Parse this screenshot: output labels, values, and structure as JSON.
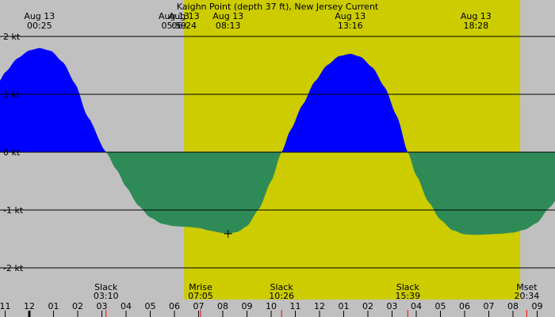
{
  "chart_data": {
    "type": "area",
    "title": "Kaighn Point (depth 37 ft), New Jersey Current",
    "ylim": [
      -2.35,
      2.45
    ],
    "xlim_hours": [
      -1.25,
      33.2
    ],
    "y_ticks": [
      {
        "value": 2,
        "label": "2 kt"
      },
      {
        "value": 1,
        "label": "1 kt"
      },
      {
        "value": 0,
        "label": "0 kt"
      },
      {
        "value": -1,
        "label": "-1 kt"
      },
      {
        "value": -2,
        "label": "-2 kt"
      }
    ],
    "x_ticks": [
      {
        "h": -1,
        "label": "11"
      },
      {
        "h": 0,
        "label": "12"
      },
      {
        "h": 1,
        "label": "01"
      },
      {
        "h": 2,
        "label": "02"
      },
      {
        "h": 3,
        "label": "03"
      },
      {
        "h": 4,
        "label": "04"
      },
      {
        "h": 5,
        "label": "05"
      },
      {
        "h": 6,
        "label": "06"
      },
      {
        "h": 7,
        "label": "07"
      },
      {
        "h": 8,
        "label": "08"
      },
      {
        "h": 9,
        "label": "09"
      },
      {
        "h": 10,
        "label": "10"
      },
      {
        "h": 11,
        "label": "11"
      },
      {
        "h": 12,
        "label": "12"
      },
      {
        "h": 13,
        "label": "01"
      },
      {
        "h": 14,
        "label": "02"
      },
      {
        "h": 15,
        "label": "03"
      },
      {
        "h": 16,
        "label": "04"
      },
      {
        "h": 17,
        "label": "05"
      },
      {
        "h": 18,
        "label": "06"
      },
      {
        "h": 19,
        "label": "07"
      },
      {
        "h": 20,
        "label": "08"
      },
      {
        "h": 21,
        "label": "09"
      }
    ],
    "daylight": {
      "start": 6.4,
      "end": 20.3
    },
    "curve": [
      [
        -1.25,
        1.22
      ],
      [
        -1.0,
        1.38
      ],
      [
        -0.5,
        1.62
      ],
      [
        0.0,
        1.76
      ],
      [
        0.42,
        1.8
      ],
      [
        0.9,
        1.75
      ],
      [
        1.4,
        1.55
      ],
      [
        1.9,
        1.18
      ],
      [
        2.4,
        0.62
      ],
      [
        3.17,
        0.0
      ],
      [
        3.6,
        -0.3
      ],
      [
        4.0,
        -0.6
      ],
      [
        4.5,
        -0.92
      ],
      [
        5.0,
        -1.13
      ],
      [
        5.5,
        -1.24
      ],
      [
        6.0,
        -1.28
      ],
      [
        6.5,
        -1.29
      ],
      [
        7.0,
        -1.31
      ],
      [
        7.5,
        -1.36
      ],
      [
        8.0,
        -1.4
      ],
      [
        8.22,
        -1.41
      ],
      [
        8.6,
        -1.38
      ],
      [
        9.0,
        -1.28
      ],
      [
        9.5,
        -0.98
      ],
      [
        10.0,
        -0.5
      ],
      [
        10.43,
        0.0
      ],
      [
        10.8,
        0.38
      ],
      [
        11.3,
        0.82
      ],
      [
        11.8,
        1.22
      ],
      [
        12.3,
        1.5
      ],
      [
        12.8,
        1.66
      ],
      [
        13.27,
        1.7
      ],
      [
        13.7,
        1.65
      ],
      [
        14.2,
        1.46
      ],
      [
        14.7,
        1.12
      ],
      [
        15.2,
        0.62
      ],
      [
        15.65,
        0.0
      ],
      [
        16.0,
        -0.4
      ],
      [
        16.5,
        -0.86
      ],
      [
        17.0,
        -1.17
      ],
      [
        17.5,
        -1.35
      ],
      [
        18.0,
        -1.42
      ],
      [
        18.47,
        -1.43
      ],
      [
        19.0,
        -1.42
      ],
      [
        19.5,
        -1.41
      ],
      [
        20.0,
        -1.39
      ],
      [
        20.5,
        -1.34
      ],
      [
        21.0,
        -1.22
      ],
      [
        21.5,
        -0.96
      ],
      [
        21.85,
        -0.8
      ]
    ],
    "top_labels": [
      {
        "h": 0.42,
        "date": "Aug 13",
        "time": "00:25"
      },
      {
        "h": 5.98,
        "date": "Aug 13",
        "time": "05:59"
      },
      {
        "h": 6.4,
        "date": "Aug 13",
        "time": "06:24"
      },
      {
        "h": 8.22,
        "date": "Aug 13",
        "time": "08:13"
      },
      {
        "h": 13.27,
        "date": "Aug 13",
        "time": "13:16"
      },
      {
        "h": 18.47,
        "date": "Aug 13",
        "time": "18:28"
      }
    ],
    "bottom_labels": [
      {
        "h": 3.17,
        "name": "Slack",
        "time": "03:10"
      },
      {
        "h": 7.08,
        "name": "Mrise",
        "time": "07:05"
      },
      {
        "h": 10.43,
        "name": "Slack",
        "time": "10:26"
      },
      {
        "h": 15.65,
        "name": "Slack",
        "time": "15:39"
      },
      {
        "h": 20.57,
        "name": "Mset",
        "time": "20:34"
      }
    ],
    "marker": {
      "h": 8.22,
      "value": -1.41
    },
    "colors": {
      "night": "#c0c0c0",
      "day": "#cccc00",
      "flood": "#0000ff",
      "ebb": "#2e8b57",
      "event_tick": "#ff0000",
      "gridline": "#000000"
    }
  }
}
